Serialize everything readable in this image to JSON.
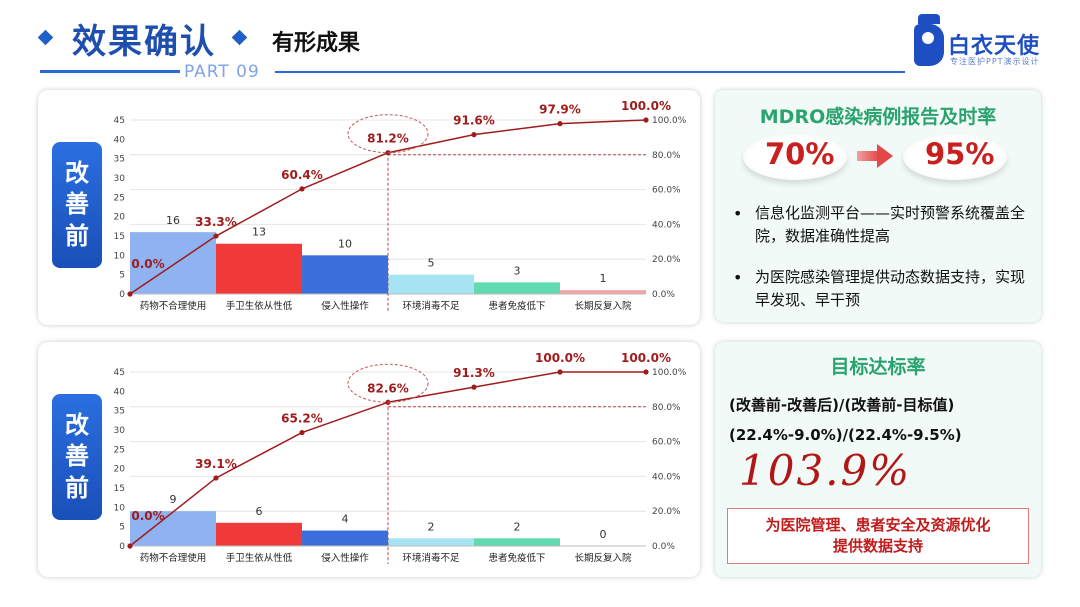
{
  "header": {
    "title": "效果确认",
    "subtitle": "有形成果",
    "part": "PART 09",
    "logo_name": "白衣天使",
    "logo_tagline": "专注医护PPT演示设计"
  },
  "chart_data": [
    {
      "type": "bar",
      "tag": [
        "改",
        "善",
        "前"
      ],
      "categories": [
        "药物不合理使用",
        "手卫生依从性低",
        "侵入性操作",
        "环境消毒不足",
        "患者免疫低下",
        "长期反复入院"
      ],
      "values": [
        16,
        13,
        10,
        5,
        3,
        1
      ],
      "value_labels": [
        "16",
        "13",
        "10",
        "5",
        "3",
        "1"
      ],
      "bar_colors": [
        "#8fb2f0",
        "#f03a3a",
        "#3b70dc",
        "#a6e4f4",
        "#62dab0",
        "#f3a5a5"
      ],
      "cumulative": [
        0,
        33.3,
        60.4,
        81.2,
        91.6,
        97.9,
        100.0
      ],
      "cumulative_labels": [
        "0.0%",
        "33.3%",
        "60.4%",
        "81.2%",
        "91.6%",
        "97.9%",
        "100.0%"
      ],
      "highlight_index": 3,
      "left_axis": {
        "min": 0,
        "max": 45,
        "ticks": [
          "0",
          "5",
          "10",
          "15",
          "20",
          "25",
          "30",
          "35",
          "40",
          "45"
        ]
      },
      "right_axis": {
        "min": 0,
        "max": 100,
        "ticks": [
          "0.0%",
          "20.0%",
          "40.0%",
          "60.0%",
          "80.0%",
          "100.0%"
        ]
      },
      "reference_line": 80
    },
    {
      "type": "bar",
      "tag": [
        "改",
        "善",
        "前"
      ],
      "categories": [
        "药物不合理使用",
        "手卫生依从性低",
        "侵入性操作",
        "环境消毒不足",
        "患者免疫低下",
        "长期反复入院"
      ],
      "values": [
        9,
        6,
        4,
        2,
        2,
        0
      ],
      "value_labels": [
        "9",
        "6",
        "4",
        "2",
        "2",
        "0"
      ],
      "bar_colors": [
        "#8fb2f0",
        "#f03a3a",
        "#3b70dc",
        "#a6e4f4",
        "#62dab0",
        "#f3a5a5"
      ],
      "cumulative": [
        0,
        39.1,
        65.2,
        82.6,
        91.3,
        100.0,
        100.0
      ],
      "cumulative_labels": [
        "0.0%",
        "39.1%",
        "65.2%",
        "82.6%",
        "91.3%",
        "100.0%",
        "100.0%"
      ],
      "highlight_index": 3,
      "left_axis": {
        "min": 0,
        "max": 45,
        "ticks": [
          "0",
          "5",
          "10",
          "15",
          "20",
          "25",
          "30",
          "35",
          "40",
          "45"
        ]
      },
      "right_axis": {
        "min": 0,
        "max": 100,
        "ticks": [
          "0.0%",
          "20.0%",
          "40.0%",
          "60.0%",
          "80.0%",
          "100.0%"
        ]
      },
      "reference_line": 80
    }
  ],
  "card1": {
    "title": "MDRO感染病例报告及时率",
    "from": "70%",
    "to": "95%",
    "bullets": [
      "信息化监测平台——实时预警系统覆盖全院，数据准确性提高",
      "为医院感染管理提供动态数据支持，实现早发现、早干预"
    ]
  },
  "card2": {
    "title": "目标达标率",
    "formula": "(改善前-改善后)/(改善前-目标值)",
    "calc": "(22.4%-9.0%)/(22.4%-9.5%)",
    "result": "103.9%",
    "note_line1": "为医院管理、患者安全及资源优化",
    "note_line2": "提供数据支持"
  },
  "colors": {
    "accent_blue": "#1f4fae",
    "line_red": "#a01c1c",
    "green_title": "#2aa36e",
    "result_red": "#b01818"
  }
}
